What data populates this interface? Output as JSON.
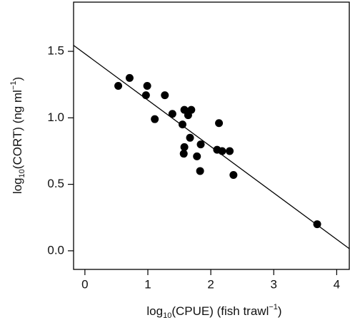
{
  "chart_data": {
    "type": "scatter",
    "xlabel": {
      "base": "log",
      "sub": "10",
      "main": "(CPUE) (fish trawl",
      "sup": "−1",
      "end": ")"
    },
    "ylabel": {
      "base": "log",
      "sub": "10",
      "main": "(CORT) (ng ml",
      "sup": "−1",
      "end": ")"
    },
    "xlim": [
      -0.18,
      4.2
    ],
    "ylim": [
      -0.14,
      1.87
    ],
    "xticks": [
      0,
      1,
      2,
      3,
      4
    ],
    "yticks": [
      {
        "value": 0,
        "label": "0.0"
      },
      0.5,
      {
        "value": 1,
        "label": "1.0"
      },
      1.5
    ],
    "series": [
      {
        "type": "scatter",
        "color": "#000000",
        "x": [
          0.53,
          0.71,
          0.99,
          0.97,
          1.11,
          1.27,
          1.39,
          1.55,
          1.58,
          1.69,
          1.64,
          1.67,
          1.58,
          1.57,
          1.78,
          1.84,
          1.83,
          2.13,
          2.1,
          2.18,
          2.3,
          2.36,
          3.69
        ],
        "values": [
          1.24,
          1.3,
          1.24,
          1.17,
          0.99,
          1.17,
          1.03,
          0.95,
          1.06,
          1.06,
          1.02,
          0.85,
          0.78,
          0.73,
          0.71,
          0.8,
          0.6,
          0.96,
          0.76,
          0.75,
          0.75,
          0.57,
          0.2
        ]
      },
      {
        "type": "line",
        "color": "#000000",
        "x": [
          -0.18,
          4.2
        ],
        "values": [
          1.545,
          0.016
        ]
      }
    ]
  }
}
